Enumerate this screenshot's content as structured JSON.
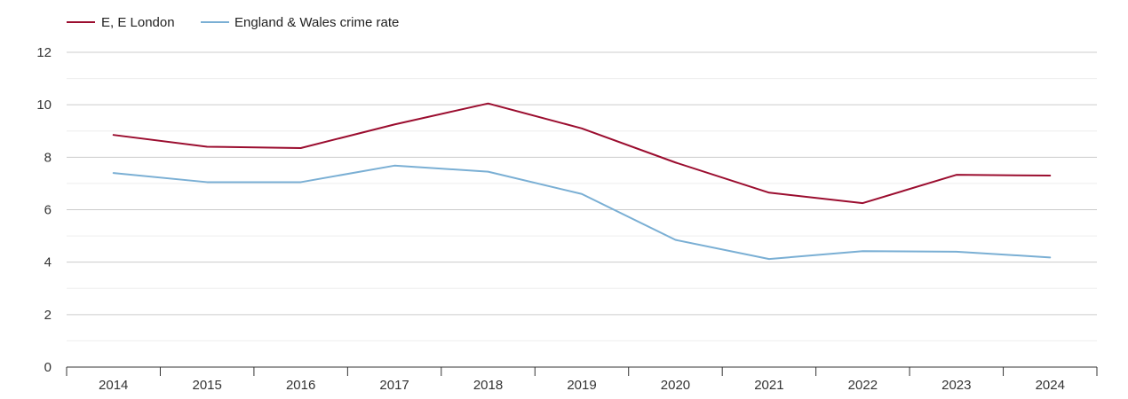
{
  "chart_data": {
    "type": "line",
    "title": "",
    "xlabel": "",
    "ylabel": "",
    "categories": [
      "2014",
      "2015",
      "2016",
      "2017",
      "2018",
      "2019",
      "2020",
      "2021",
      "2022",
      "2023",
      "2024"
    ],
    "ylim": [
      0,
      12
    ],
    "yticks": [
      0,
      2,
      4,
      6,
      8,
      10,
      12
    ],
    "grid": true,
    "legend_position": "top-left",
    "series": [
      {
        "name": "E, E London",
        "color": "#9b0d2f",
        "values": [
          8.85,
          8.4,
          8.35,
          9.25,
          10.05,
          9.1,
          7.8,
          6.65,
          6.25,
          7.33,
          7.3
        ]
      },
      {
        "name": "England & Wales crime rate",
        "color": "#7aafd4",
        "values": [
          7.4,
          7.05,
          7.05,
          7.68,
          7.45,
          6.6,
          4.85,
          4.12,
          4.42,
          4.4,
          4.18
        ]
      }
    ]
  }
}
